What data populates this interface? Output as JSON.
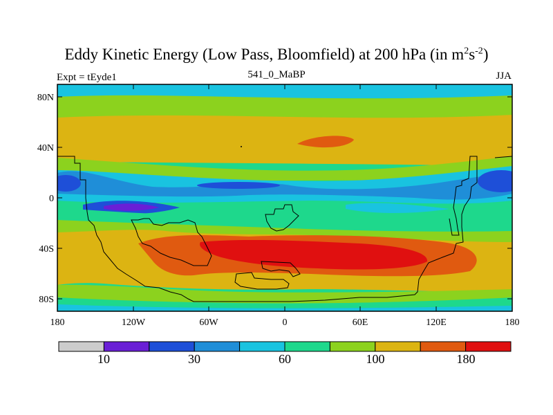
{
  "title": {
    "prefix": "Eddy Kinetic Energy (Low Pass, Bloomfield) at 200 hPa (in m",
    "sup1": "2",
    "mid": "s",
    "sup2": "-2",
    "suffix": ")"
  },
  "subtitle_left": "Expt = tEyde1",
  "subtitle_center": "541_0_MaBP",
  "subtitle_right": "JJA",
  "map": {
    "lat_ticks": [
      "80N",
      "40N",
      "0",
      "40S",
      "80S"
    ],
    "lon_ticks": [
      "180",
      "120W",
      "60W",
      "0",
      "60E",
      "120E",
      "180"
    ]
  },
  "colorbar": {
    "colors": [
      "#cccccc",
      "#6a1fd6",
      "#1e4fd8",
      "#1f8ed8",
      "#19c3e0",
      "#1ed88c",
      "#8cd21e",
      "#dcb412",
      "#e05a10",
      "#e01010"
    ],
    "labels": [
      "10",
      "30",
      "60",
      "100",
      "180"
    ]
  },
  "colors": {
    "c1": "#6a1fd6",
    "c2": "#1e4fd8",
    "c3": "#1f8ed8",
    "c4": "#19c3e0",
    "c5": "#1ed88c",
    "c6": "#8cd21e",
    "c7": "#dcb412",
    "c8": "#e05a10",
    "c9": "#e01010"
  }
}
